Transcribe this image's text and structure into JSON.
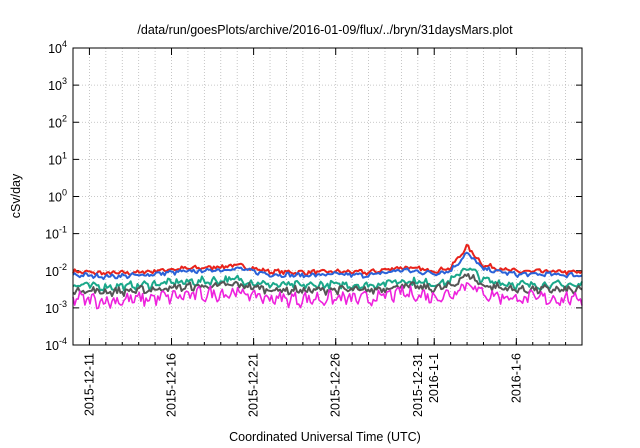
{
  "chart_data": {
    "type": "line",
    "title": "/data/run/goesPlots/archive/2016-01-09/flux/../bryn/31daysMars.plot",
    "xlabel": "Coordinated Universal Time (UTC)",
    "ylabel": "cSv/day",
    "yscale": "log",
    "ylim": [
      0.0001,
      10000
    ],
    "y_ticks": [
      {
        "base": "10",
        "exp": "-4",
        "value": 0.0001
      },
      {
        "base": "10",
        "exp": "-3",
        "value": 0.001
      },
      {
        "base": "10",
        "exp": "-2",
        "value": 0.01
      },
      {
        "base": "10",
        "exp": "-1",
        "value": 0.1
      },
      {
        "base": "10",
        "exp": "0",
        "value": 1
      },
      {
        "base": "10",
        "exp": "1",
        "value": 10
      },
      {
        "base": "10",
        "exp": "2",
        "value": 100
      },
      {
        "base": "10",
        "exp": "3",
        "value": 1000
      },
      {
        "base": "10",
        "exp": "4",
        "value": 10000
      }
    ],
    "xlim": [
      "2015-12-10",
      "2016-01-10"
    ],
    "x_ticks": [
      "2015-12-11",
      "2015-12-16",
      "2015-12-21",
      "2015-12-26",
      "2015-12-31",
      "2016-1-1",
      "2016-1-6"
    ],
    "grid": true,
    "colors": {
      "red": "#e8221a",
      "blue": "#2a62d8",
      "teal": "#1aa88a",
      "magenta": "#ee22dd",
      "dark": "#555555"
    },
    "series": [
      {
        "color": "#e8221a",
        "x": [
          "2015-12-10",
          "2015-12-12",
          "2015-12-14",
          "2015-12-16",
          "2015-12-18",
          "2015-12-20",
          "2015-12-22",
          "2015-12-24",
          "2015-12-26",
          "2015-12-28",
          "2015-12-30",
          "2016-01-01",
          "2016-01-02",
          "2016-01-03",
          "2016-01-04",
          "2016-01-06",
          "2016-01-08",
          "2016-01-10"
        ],
        "values": [
          0.0095,
          0.0085,
          0.009,
          0.011,
          0.012,
          0.014,
          0.0095,
          0.009,
          0.0095,
          0.009,
          0.0125,
          0.01,
          0.012,
          0.045,
          0.014,
          0.0095,
          0.0095,
          0.009
        ]
      },
      {
        "color": "#2a62d8",
        "x": [
          "2015-12-10",
          "2015-12-12",
          "2015-12-14",
          "2015-12-16",
          "2015-12-18",
          "2015-12-20",
          "2015-12-22",
          "2015-12-24",
          "2015-12-26",
          "2015-12-28",
          "2015-12-30",
          "2016-01-01",
          "2016-01-02",
          "2016-01-03",
          "2016-01-04",
          "2016-01-06",
          "2016-01-08",
          "2016-01-10"
        ],
        "values": [
          0.0078,
          0.007,
          0.0075,
          0.009,
          0.01,
          0.0115,
          0.008,
          0.0075,
          0.008,
          0.0075,
          0.0105,
          0.0085,
          0.01,
          0.03,
          0.011,
          0.008,
          0.008,
          0.0075
        ]
      },
      {
        "color": "#1aa88a",
        "x": [
          "2015-12-10",
          "2015-12-12",
          "2015-12-14",
          "2015-12-16",
          "2015-12-18",
          "2015-12-20",
          "2015-12-22",
          "2015-12-24",
          "2015-12-26",
          "2015-12-28",
          "2015-12-30",
          "2016-01-01",
          "2016-01-02",
          "2016-01-03",
          "2016-01-04",
          "2016-01-06",
          "2016-01-08",
          "2016-01-10"
        ],
        "values": [
          0.0042,
          0.0037,
          0.004,
          0.0048,
          0.0052,
          0.0058,
          0.0042,
          0.004,
          0.0042,
          0.004,
          0.0055,
          0.0045,
          0.0052,
          0.013,
          0.0055,
          0.0042,
          0.0042,
          0.004
        ]
      },
      {
        "color": "#555555",
        "x": [
          "2015-12-10",
          "2015-12-12",
          "2015-12-14",
          "2015-12-16",
          "2015-12-18",
          "2015-12-20",
          "2015-12-22",
          "2015-12-24",
          "2015-12-26",
          "2015-12-28",
          "2015-12-30",
          "2016-01-01",
          "2016-01-02",
          "2016-01-03",
          "2016-01-04",
          "2016-01-06",
          "2016-01-08",
          "2016-01-10"
        ],
        "values": [
          0.0031,
          0.0027,
          0.0029,
          0.0035,
          0.0038,
          0.0042,
          0.0031,
          0.0029,
          0.0031,
          0.0029,
          0.004,
          0.0033,
          0.0038,
          0.008,
          0.004,
          0.0031,
          0.0031,
          0.0029
        ]
      },
      {
        "color": "#ee22dd",
        "x": [
          "2015-12-10",
          "2015-12-12",
          "2015-12-14",
          "2015-12-16",
          "2015-12-18",
          "2015-12-20",
          "2015-12-22",
          "2015-12-24",
          "2015-12-26",
          "2015-12-28",
          "2015-12-30",
          "2016-01-01",
          "2016-01-02",
          "2016-01-03",
          "2016-01-04",
          "2016-01-06",
          "2016-01-08",
          "2016-01-10"
        ],
        "values": [
          0.0018,
          0.0015,
          0.0017,
          0.002,
          0.0023,
          0.0026,
          0.0018,
          0.0017,
          0.0018,
          0.0017,
          0.0025,
          0.002,
          0.0023,
          0.005,
          0.0024,
          0.0018,
          0.0018,
          0.0017
        ]
      }
    ]
  }
}
